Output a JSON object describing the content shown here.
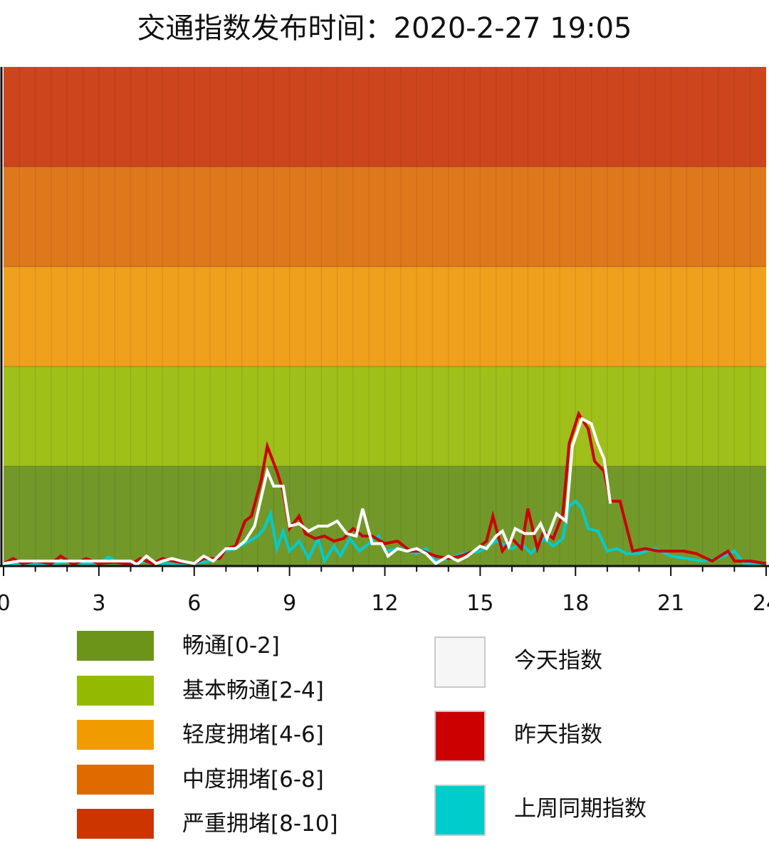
{
  "title": "交通指数发布时间：2020-2-27 19:05",
  "chart_data": {
    "type": "line",
    "title": "交通指数发布时间：2020-2-27 19:05",
    "xlim": [
      0,
      24
    ],
    "ylim": [
      0,
      10
    ],
    "x_ticks": [
      0,
      3,
      6,
      9,
      12,
      15,
      18,
      21,
      24
    ],
    "x_tick_labels": [
      "0",
      "3",
      "6",
      "9",
      "12",
      "15",
      "18",
      "21",
      "24"
    ],
    "grid": "vertical",
    "bands": [
      {
        "label": "畅通[0-2]",
        "from": 0,
        "to": 2,
        "color": "#6b9418",
        "fill": "#73982a"
      },
      {
        "label": "基本畅通[2-4]",
        "from": 2,
        "to": 4,
        "color": "#94ba00",
        "fill": "#9fbf1a"
      },
      {
        "label": "轻度拥堵[4-6]",
        "from": 4,
        "to": 6,
        "color": "#f09c00",
        "fill": "#efa01c"
      },
      {
        "label": "中度拥堵[6-8]",
        "from": 6,
        "to": 8,
        "color": "#de6a00",
        "fill": "#de781d"
      },
      {
        "label": "严重拥堵[8-10]",
        "from": 8,
        "to": 10,
        "color": "#cc3500",
        "fill": "#cd451c"
      }
    ],
    "series": [
      {
        "name": "上周同期指数",
        "color": "#00cccc",
        "points": [
          [
            0,
            0.03
          ],
          [
            0.5,
            0.05
          ],
          [
            1,
            0.04
          ],
          [
            1.5,
            0.04
          ],
          [
            2,
            0.08
          ],
          [
            2.5,
            0.05
          ],
          [
            3,
            0.06
          ],
          [
            3.3,
            0.18
          ],
          [
            3.7,
            0.05
          ],
          [
            4,
            0.04
          ],
          [
            4.5,
            0.1
          ],
          [
            5,
            0.05
          ],
          [
            5.5,
            0.03
          ],
          [
            6,
            0.05
          ],
          [
            6.5,
            0.1
          ],
          [
            7,
            0.3
          ],
          [
            7.3,
            0.35
          ],
          [
            7.6,
            0.45
          ],
          [
            8,
            0.6
          ],
          [
            8.2,
            0.75
          ],
          [
            8.4,
            1.05
          ],
          [
            8.6,
            0.35
          ],
          [
            8.8,
            0.7
          ],
          [
            9,
            0.3
          ],
          [
            9.3,
            0.5
          ],
          [
            9.6,
            0.15
          ],
          [
            9.9,
            0.55
          ],
          [
            10.1,
            0.1
          ],
          [
            10.4,
            0.4
          ],
          [
            10.6,
            0.2
          ],
          [
            10.9,
            0.55
          ],
          [
            11.2,
            0.3
          ],
          [
            11.5,
            0.45
          ],
          [
            11.8,
            0.6
          ],
          [
            12,
            0.3
          ],
          [
            12.5,
            0.35
          ],
          [
            13,
            0.25
          ],
          [
            13.3,
            0.35
          ],
          [
            13.6,
            0.1
          ],
          [
            14,
            0.15
          ],
          [
            14.5,
            0.25
          ],
          [
            15,
            0.3
          ],
          [
            15.5,
            0.5
          ],
          [
            16,
            0.35
          ],
          [
            16.3,
            0.45
          ],
          [
            16.6,
            0.25
          ],
          [
            17,
            0.55
          ],
          [
            17.3,
            0.4
          ],
          [
            17.6,
            0.55
          ],
          [
            17.8,
            1.2
          ],
          [
            18,
            1.3
          ],
          [
            18.2,
            1.15
          ],
          [
            18.4,
            0.75
          ],
          [
            18.7,
            0.7
          ],
          [
            19,
            0.3
          ],
          [
            19.3,
            0.35
          ],
          [
            19.6,
            0.25
          ],
          [
            20,
            0.25
          ],
          [
            20.5,
            0.35
          ],
          [
            21,
            0.2
          ],
          [
            21.5,
            0.15
          ],
          [
            22,
            0.1
          ],
          [
            22.5,
            0.15
          ],
          [
            23,
            0.3
          ],
          [
            23.3,
            0.05
          ],
          [
            24,
            0.05
          ]
        ]
      },
      {
        "name": "昨天指数",
        "color": "#cc0000",
        "points": [
          [
            0,
            0.05
          ],
          [
            0.3,
            0.15
          ],
          [
            0.6,
            0.05
          ],
          [
            1,
            0.1
          ],
          [
            1.5,
            0.05
          ],
          [
            1.8,
            0.2
          ],
          [
            2.2,
            0.03
          ],
          [
            2.6,
            0.15
          ],
          [
            3,
            0.05
          ],
          [
            3.5,
            0.08
          ],
          [
            4,
            0.03
          ],
          [
            4.3,
            0.15
          ],
          [
            4.7,
            0.05
          ],
          [
            5,
            0.15
          ],
          [
            5.5,
            0.08
          ],
          [
            6,
            0.05
          ],
          [
            6.3,
            0.15
          ],
          [
            6.8,
            0.15
          ],
          [
            7,
            0.35
          ],
          [
            7.3,
            0.4
          ],
          [
            7.6,
            0.9
          ],
          [
            7.8,
            1.0
          ],
          [
            8.1,
            1.7
          ],
          [
            8.3,
            2.4
          ],
          [
            8.6,
            1.9
          ],
          [
            8.8,
            1.5
          ],
          [
            9,
            0.75
          ],
          [
            9.3,
            1.0
          ],
          [
            9.5,
            0.65
          ],
          [
            9.8,
            0.55
          ],
          [
            10.1,
            0.6
          ],
          [
            10.4,
            0.5
          ],
          [
            10.7,
            0.55
          ],
          [
            11,
            0.75
          ],
          [
            11.3,
            0.6
          ],
          [
            11.6,
            0.6
          ],
          [
            12,
            0.45
          ],
          [
            12.4,
            0.5
          ],
          [
            12.8,
            0.3
          ],
          [
            13.2,
            0.3
          ],
          [
            13.6,
            0.2
          ],
          [
            14,
            0.15
          ],
          [
            14.4,
            0.2
          ],
          [
            14.8,
            0.3
          ],
          [
            15.2,
            0.5
          ],
          [
            15.4,
            1.0
          ],
          [
            15.7,
            0.3
          ],
          [
            16,
            0.55
          ],
          [
            16.3,
            0.35
          ],
          [
            16.5,
            1.15
          ],
          [
            16.8,
            0.35
          ],
          [
            17,
            0.7
          ],
          [
            17.3,
            0.55
          ],
          [
            17.6,
            1.05
          ],
          [
            17.8,
            2.45
          ],
          [
            18.1,
            3.05
          ],
          [
            18.4,
            2.75
          ],
          [
            18.6,
            2.1
          ],
          [
            18.9,
            1.9
          ],
          [
            19.1,
            1.3
          ],
          [
            19.4,
            1.3
          ],
          [
            19.8,
            0.3
          ],
          [
            20.2,
            0.35
          ],
          [
            20.6,
            0.3
          ],
          [
            21,
            0.3
          ],
          [
            21.4,
            0.3
          ],
          [
            21.8,
            0.25
          ],
          [
            22.3,
            0.1
          ],
          [
            22.8,
            0.3
          ],
          [
            23,
            0.1
          ],
          [
            23.5,
            0.1
          ],
          [
            24,
            0.05
          ]
        ]
      },
      {
        "name": "今天指数",
        "color": "#ffffff",
        "points": [
          [
            0,
            0.05
          ],
          [
            0.5,
            0.1
          ],
          [
            1,
            0.1
          ],
          [
            1.5,
            0.1
          ],
          [
            2,
            0.1
          ],
          [
            2.5,
            0.1
          ],
          [
            3,
            0.1
          ],
          [
            3.5,
            0.1
          ],
          [
            4,
            0.1
          ],
          [
            4.2,
            0.03
          ],
          [
            4.5,
            0.2
          ],
          [
            4.8,
            0.05
          ],
          [
            5,
            0.1
          ],
          [
            5.3,
            0.15
          ],
          [
            5.6,
            0.1
          ],
          [
            6,
            0.05
          ],
          [
            6.3,
            0.2
          ],
          [
            6.6,
            0.1
          ],
          [
            7,
            0.35
          ],
          [
            7.3,
            0.35
          ],
          [
            7.6,
            0.5
          ],
          [
            7.9,
            0.8
          ],
          [
            8.1,
            1.35
          ],
          [
            8.3,
            1.9
          ],
          [
            8.5,
            1.6
          ],
          [
            8.8,
            1.6
          ],
          [
            9,
            0.8
          ],
          [
            9.3,
            0.85
          ],
          [
            9.6,
            0.7
          ],
          [
            9.9,
            0.8
          ],
          [
            10.2,
            0.8
          ],
          [
            10.5,
            0.9
          ],
          [
            10.8,
            0.65
          ],
          [
            11.1,
            0.6
          ],
          [
            11.3,
            1.15
          ],
          [
            11.6,
            0.45
          ],
          [
            11.9,
            0.45
          ],
          [
            12.1,
            0.2
          ],
          [
            12.4,
            0.35
          ],
          [
            12.7,
            0.3
          ],
          [
            13,
            0.35
          ],
          [
            13.3,
            0.25
          ],
          [
            13.6,
            0.05
          ],
          [
            14,
            0.2
          ],
          [
            14.3,
            0.1
          ],
          [
            14.6,
            0.2
          ],
          [
            15,
            0.4
          ],
          [
            15.2,
            0.35
          ],
          [
            15.5,
            0.6
          ],
          [
            15.7,
            0.7
          ],
          [
            15.9,
            0.4
          ],
          [
            16.1,
            0.75
          ],
          [
            16.4,
            0.65
          ],
          [
            16.7,
            0.65
          ],
          [
            16.9,
            0.85
          ],
          [
            17.1,
            0.55
          ],
          [
            17.4,
            1.05
          ],
          [
            17.7,
            0.9
          ],
          [
            17.9,
            2.4
          ],
          [
            18.2,
            2.95
          ],
          [
            18.5,
            2.85
          ],
          [
            18.7,
            2.45
          ],
          [
            18.9,
            2.15
          ],
          [
            19.1,
            1.25
          ]
        ]
      }
    ]
  },
  "legend": {
    "bands": [
      {
        "label": "畅通[0-2]",
        "color": "#6b9418"
      },
      {
        "label": "基本畅通[2-4]",
        "color": "#94ba00"
      },
      {
        "label": "轻度拥堵[4-6]",
        "color": "#f09c00"
      },
      {
        "label": "中度拥堵[6-8]",
        "color": "#de6a00"
      },
      {
        "label": "严重拥堵[8-10]",
        "color": "#cc3500"
      }
    ],
    "series": [
      {
        "label": "今天指数",
        "color": "#f6f6f6"
      },
      {
        "label": "昨天指数",
        "color": "#cc0000"
      },
      {
        "label": "上周同期指数",
        "color": "#00cccc"
      }
    ]
  }
}
